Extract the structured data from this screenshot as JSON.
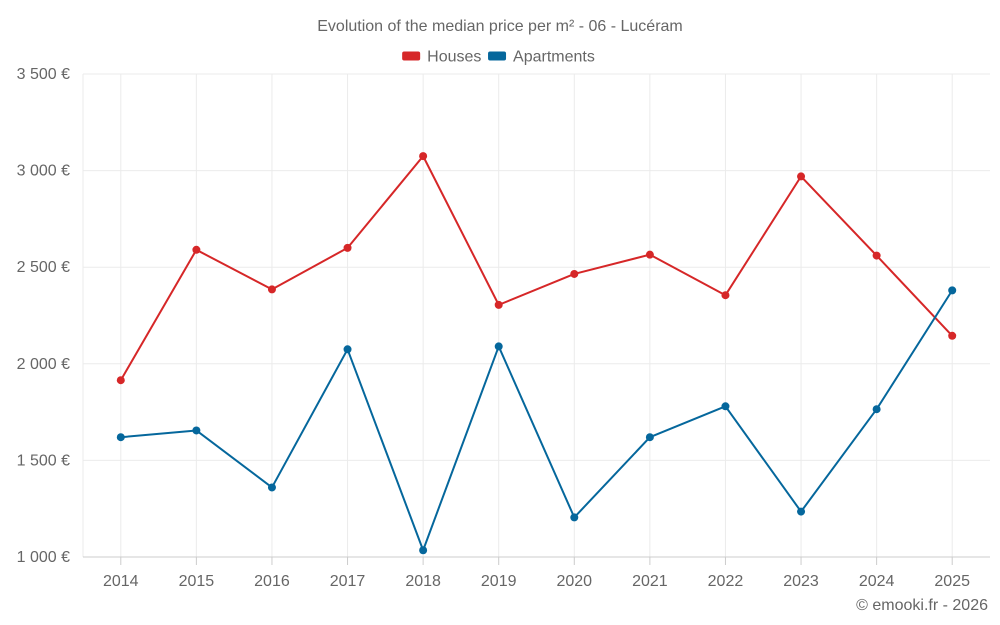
{
  "chart_data": {
    "type": "line",
    "title": "Evolution of the median price per m² - 06 - Lucéram",
    "categories": [
      "2014",
      "2015",
      "2016",
      "2017",
      "2018",
      "2019",
      "2020",
      "2021",
      "2022",
      "2023",
      "2024",
      "2025"
    ],
    "series": [
      {
        "name": "Houses",
        "color": "#d62728",
        "values": [
          1915,
          2590,
          2385,
          2600,
          3075,
          2305,
          2465,
          2565,
          2355,
          2970,
          2560,
          2145
        ]
      },
      {
        "name": "Apartments",
        "color": "#05679c",
        "values": [
          1620,
          1655,
          1360,
          2075,
          1035,
          2090,
          1205,
          1620,
          1780,
          1235,
          1765,
          2380
        ]
      }
    ],
    "ylim": [
      1000,
      3500
    ],
    "yticks": [
      {
        "value": 1000,
        "label": "1 000 €"
      },
      {
        "value": 1500,
        "label": "1 500 €"
      },
      {
        "value": 2000,
        "label": "2 000 €"
      },
      {
        "value": 2500,
        "label": "2 500 €"
      },
      {
        "value": 3000,
        "label": "3 000 €"
      },
      {
        "value": 3500,
        "label": "3 500 €"
      }
    ],
    "xlabel": "",
    "ylabel": "",
    "grid": true,
    "legend": "top-center"
  },
  "credit": "© emooki.fr - 2026"
}
